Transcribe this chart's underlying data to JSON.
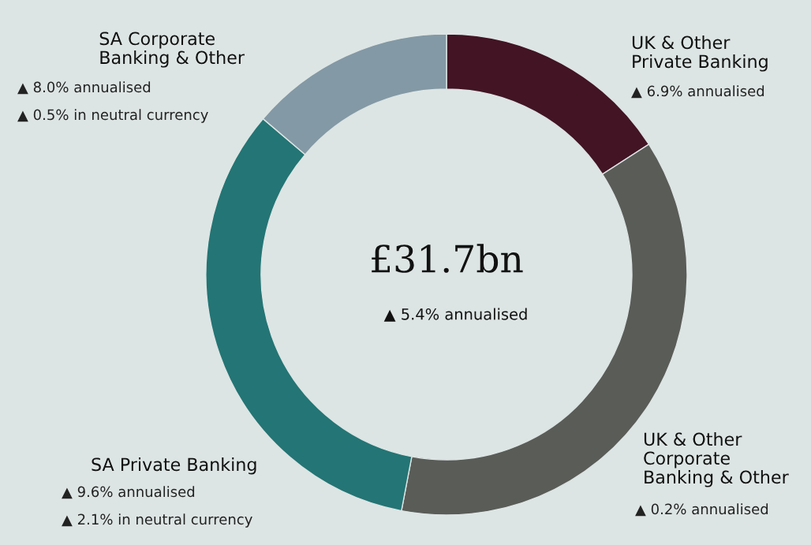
{
  "chart_data": {
    "type": "donut",
    "title": "£31.7bn",
    "subtitle": "▲ 5.4% annualised",
    "categories": [
      "UK & Other\nPrivate Banking",
      "UK & Other\nCorporate\nBanking & Other",
      "SA Private Banking",
      "SA Corporate\nBanking & Other"
    ],
    "values": [
      15.9,
      37.1,
      33.2,
      13.8
    ],
    "colors": [
      "#421424",
      "#5a5c58",
      "#247575",
      "#8399a5"
    ],
    "annotations": [
      "▲ 6.9% annualised",
      "▲ 0.2% annualised",
      "▲ 9.6% annualised",
      "▲ 2.1% in neutral currency",
      "▲ 8.0% annualised",
      "▲ 0.5% in neutral currency"
    ],
    "legend": false
  }
}
